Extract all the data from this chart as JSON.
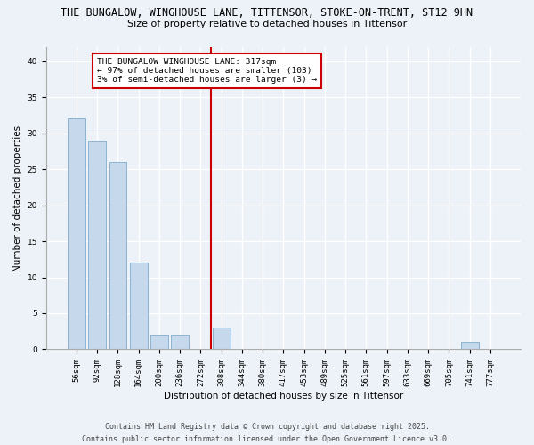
{
  "title_line1": "THE BUNGALOW, WINGHOUSE LANE, TITTENSOR, STOKE-ON-TRENT, ST12 9HN",
  "title_line2": "Size of property relative to detached houses in Tittensor",
  "xlabel": "Distribution of detached houses by size in Tittensor",
  "ylabel": "Number of detached properties",
  "categories": [
    "56sqm",
    "92sqm",
    "128sqm",
    "164sqm",
    "200sqm",
    "236sqm",
    "272sqm",
    "308sqm",
    "344sqm",
    "380sqm",
    "417sqm",
    "453sqm",
    "489sqm",
    "525sqm",
    "561sqm",
    "597sqm",
    "633sqm",
    "669sqm",
    "705sqm",
    "741sqm",
    "777sqm"
  ],
  "values": [
    32,
    29,
    26,
    12,
    2,
    2,
    0,
    3,
    0,
    0,
    0,
    0,
    0,
    0,
    0,
    0,
    0,
    0,
    0,
    1,
    0
  ],
  "bar_color": "#c5d8ec",
  "bar_edge_color": "#8ab4d4",
  "vline_x_index": 7,
  "vline_color": "#cc0000",
  "annotation_text": "THE BUNGALOW WINGHOUSE LANE: 317sqm\n← 97% of detached houses are smaller (103)\n3% of semi-detached houses are larger (3) →",
  "annotation_box_color": "#ffffff",
  "annotation_box_edge": "#cc0000",
  "ylim": [
    0,
    42
  ],
  "yticks": [
    0,
    5,
    10,
    15,
    20,
    25,
    30,
    35,
    40
  ],
  "footer_line1": "Contains HM Land Registry data © Crown copyright and database right 2025.",
  "footer_line2": "Contains public sector information licensed under the Open Government Licence v3.0.",
  "background_color": "#edf2f8",
  "grid_color": "#ffffff",
  "title_fontsize": 8.5,
  "subtitle_fontsize": 8,
  "axis_label_fontsize": 7.5,
  "tick_fontsize": 6.5,
  "annotation_fontsize": 6.8,
  "footer_fontsize": 6
}
